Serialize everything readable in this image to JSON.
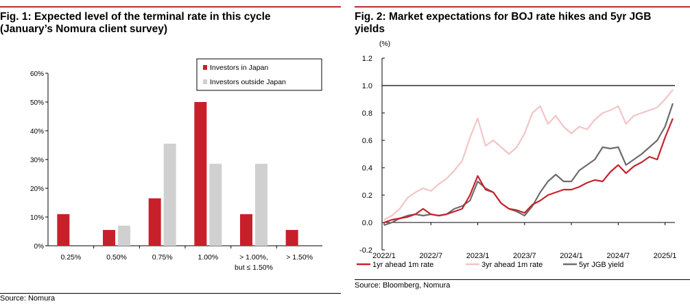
{
  "fig1": {
    "title_line1": "Fig. 1: Expected level of the terminal rate in this cycle",
    "title_line2": "(January’s Nomura client survey)",
    "source": "Source: Nomura",
    "colors": {
      "series1": "#c8202a",
      "series2": "#d0d0d0"
    }
  },
  "fig2": {
    "title_line1": "Fig. 2: Market expectations for BOJ rate hikes and 5yr JGB",
    "title_line2": "yields",
    "source": "Source: Bloomberg, Nomura",
    "colors": {
      "s1": "#c8202a",
      "s2": "#f3c4c6",
      "s3": "#6b6b6b"
    }
  },
  "chart_data": [
    {
      "type": "bar",
      "title": "Fig. 1: Expected level of the terminal rate in this cycle (January’s Nomura client survey)",
      "categories": [
        "0.25%",
        "0.50%",
        "0.75%",
        "1.00%",
        "> 1.00%,\nbut ≤ 1.50%",
        "> 1.50%"
      ],
      "category_lines": [
        [
          "0.25%"
        ],
        [
          "0.50%"
        ],
        [
          "0.75%"
        ],
        [
          "1.00%"
        ],
        [
          "> 1.00%,",
          "but ≤ 1.50%"
        ],
        [
          "> 1.50%"
        ]
      ],
      "series": [
        {
          "name": "Investors in Japan",
          "values": [
            11,
            5.5,
            16.5,
            50,
            11,
            5.5
          ]
        },
        {
          "name": "Investors outside Japan",
          "values": [
            0,
            7,
            35.5,
            28.5,
            28.5,
            0
          ]
        }
      ],
      "yticks": [
        "0%",
        "10%",
        "20%",
        "30%",
        "40%",
        "50%",
        "60%"
      ],
      "ylim": [
        0,
        60
      ],
      "legend_position": "top-right",
      "grid": false
    },
    {
      "type": "line",
      "title": "Fig. 2: Market expectations for BOJ rate hikes and 5yr JGB yields",
      "ylabel": "(%)",
      "ylim": [
        -0.2,
        1.2
      ],
      "yticks": [
        "-0.2",
        "0.0",
        "0.2",
        "0.4",
        "0.6",
        "0.8",
        "1.0",
        "1.2"
      ],
      "xticks": [
        "2022/1",
        "2022/7",
        "2023/1",
        "2023/7",
        "2024/1",
        "2024/7",
        "2025/1"
      ],
      "reference_line": 1.0,
      "x": [
        "2022/1",
        "2022/2",
        "2022/3",
        "2022/4",
        "2022/5",
        "2022/6",
        "2022/7",
        "2022/8",
        "2022/9",
        "2022/10",
        "2022/11",
        "2022/12",
        "2023/1",
        "2023/2",
        "2023/3",
        "2023/4",
        "2023/5",
        "2023/6",
        "2023/7",
        "2023/8",
        "2023/9",
        "2023/10",
        "2023/11",
        "2023/12",
        "2024/1",
        "2024/2",
        "2024/3",
        "2024/4",
        "2024/5",
        "2024/6",
        "2024/7",
        "2024/8",
        "2024/9",
        "2024/10",
        "2024/11",
        "2024/12",
        "2025/1",
        "2025/2"
      ],
      "series": [
        {
          "name": "1yr ahead 1m rate",
          "values": [
            0.0,
            0.02,
            0.03,
            0.04,
            0.06,
            0.1,
            0.06,
            0.05,
            0.06,
            0.08,
            0.1,
            0.2,
            0.34,
            0.24,
            0.22,
            0.14,
            0.1,
            0.09,
            0.07,
            0.13,
            0.16,
            0.2,
            0.22,
            0.24,
            0.24,
            0.26,
            0.29,
            0.31,
            0.3,
            0.37,
            0.42,
            0.36,
            0.41,
            0.44,
            0.48,
            0.46,
            0.62,
            0.76
          ]
        },
        {
          "name": "3yr ahead 1m rate",
          "values": [
            0.02,
            0.05,
            0.1,
            0.18,
            0.22,
            0.25,
            0.23,
            0.28,
            0.32,
            0.38,
            0.45,
            0.62,
            0.76,
            0.56,
            0.6,
            0.55,
            0.5,
            0.55,
            0.65,
            0.8,
            0.85,
            0.72,
            0.78,
            0.7,
            0.65,
            0.7,
            0.68,
            0.75,
            0.8,
            0.82,
            0.85,
            0.72,
            0.78,
            0.8,
            0.82,
            0.84,
            0.9,
            0.97
          ]
        },
        {
          "name": "5yr JGB yield",
          "values": [
            -0.02,
            0.0,
            0.03,
            0.05,
            0.06,
            0.05,
            0.06,
            0.05,
            0.06,
            0.1,
            0.12,
            0.16,
            0.3,
            0.25,
            0.22,
            0.14,
            0.1,
            0.08,
            0.05,
            0.12,
            0.22,
            0.3,
            0.35,
            0.3,
            0.3,
            0.38,
            0.42,
            0.46,
            0.55,
            0.54,
            0.55,
            0.42,
            0.46,
            0.5,
            0.55,
            0.6,
            0.7,
            0.87
          ]
        }
      ],
      "legend_position": "bottom",
      "grid": false
    }
  ]
}
